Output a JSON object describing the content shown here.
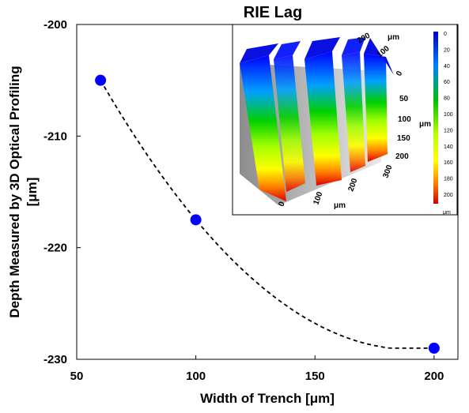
{
  "chart_data": {
    "type": "scatter",
    "title": "RIE Lag",
    "xlabel": "Width of Trench [μm]",
    "ylabel_line1": "Depth Measured by 3D Optical Profiling",
    "ylabel_line2": "[μm]",
    "xlim": [
      50,
      210
    ],
    "ylim": [
      -230,
      -200
    ],
    "xticks": [
      50,
      100,
      150,
      200
    ],
    "yticks": [
      -200,
      -210,
      -220,
      -230
    ],
    "grid": false,
    "series": [
      {
        "x": [
          60,
          100,
          200
        ],
        "y": [
          -205,
          -217.5,
          -229
        ],
        "color": "#0000ff",
        "trendline": "dashed"
      }
    ],
    "inset": {
      "axis_x_ticks": [
        "0",
        "100",
        "200",
        "300"
      ],
      "axis_x_unit": "μm",
      "axis_y_ticks": [
        "0",
        "100",
        "200"
      ],
      "axis_y_unit": "μm",
      "axis_z_ticks": [
        "50",
        "100",
        "150",
        "200"
      ],
      "axis_z_unit": "μm",
      "colorbar_ticks": [
        "0",
        "20",
        "40",
        "60",
        "80",
        "100",
        "120",
        "140",
        "160",
        "180",
        "200"
      ],
      "colorbar_unit": "μm"
    }
  }
}
